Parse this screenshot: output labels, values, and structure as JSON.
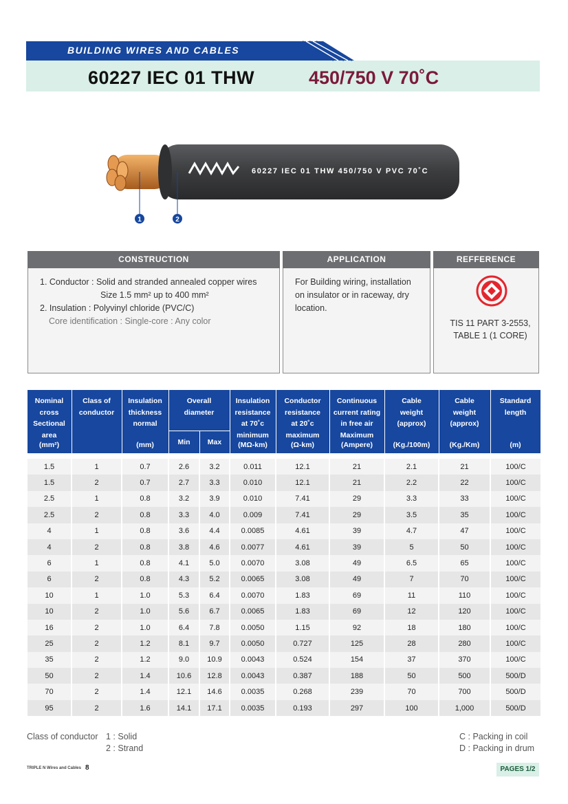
{
  "header": {
    "section_label": "BUILDING WIRES AND CABLES",
    "model": "60227 IEC 01 THW",
    "rating": "450/750 V 70˚C"
  },
  "cable": {
    "marking": "60227 IEC 01 THW 450/750 V PVC 70˚C",
    "callouts": [
      "1",
      "2"
    ]
  },
  "construction": {
    "title": "CONSTRUCTION",
    "lines": [
      "1. Conductor : Solid and stranded annealed copper wires",
      "Size 1.5 mm² up to 400 mm²",
      "2. Insulation : Polyvinyl chloride (PVC/C)",
      "Core identification : Single-core : Any color"
    ]
  },
  "application": {
    "title": "APPLICATION",
    "lines": [
      "For Building wiring, installation",
      "on insulator or in raceway, dry",
      "location."
    ]
  },
  "reference": {
    "title": "REFFERENCE",
    "lines": [
      "TIS 11 PART 3-2553,",
      "TABLE 1 (1 CORE)"
    ]
  },
  "table": {
    "headers": [
      {
        "lines": [
          "Nominal",
          "cross",
          "Sectional",
          "area"
        ],
        "unit": "(mm²)"
      },
      {
        "lines": [
          "Class of",
          "conductor"
        ]
      },
      {
        "lines": [
          "Insulation",
          "thickness",
          "normal"
        ],
        "unit": "(mm)"
      },
      {
        "lines": [
          "Overall",
          "diameter"
        ],
        "sub": [
          "Min",
          "Max"
        ]
      },
      {
        "lines": [
          "Insulation",
          "resistance",
          "at 70˚c",
          "minimum"
        ],
        "unit": "(MΩ-km)"
      },
      {
        "lines": [
          "Conductor",
          "resistance",
          "at 20˚c",
          "maximum"
        ],
        "unit": "(Ω-km)"
      },
      {
        "lines": [
          "Continuous",
          "current rating",
          "in free air",
          "Maximum"
        ],
        "unit": "(Ampere)"
      },
      {
        "lines": [
          "Cable",
          "weight",
          "(approx)"
        ],
        "unit": "(Kg./100m)"
      },
      {
        "lines": [
          "Cable",
          "weight",
          "(approx)"
        ],
        "unit": "(Kg./Km)"
      },
      {
        "lines": [
          "Standard",
          "length"
        ],
        "unit": "(m)"
      }
    ],
    "rows": [
      [
        "1.5",
        "1",
        "0.7",
        "2.6",
        "3.2",
        "0.011",
        "12.1",
        "21",
        "2.1",
        "21",
        "100/C"
      ],
      [
        "1.5",
        "2",
        "0.7",
        "2.7",
        "3.3",
        "0.010",
        "12.1",
        "21",
        "2.2",
        "22",
        "100/C"
      ],
      [
        "2.5",
        "1",
        "0.8",
        "3.2",
        "3.9",
        "0.010",
        "7.41",
        "29",
        "3.3",
        "33",
        "100/C"
      ],
      [
        "2.5",
        "2",
        "0.8",
        "3.3",
        "4.0",
        "0.009",
        "7.41",
        "29",
        "3.5",
        "35",
        "100/C"
      ],
      [
        "4",
        "1",
        "0.8",
        "3.6",
        "4.4",
        "0.0085",
        "4.61",
        "39",
        "4.7",
        "47",
        "100/C"
      ],
      [
        "4",
        "2",
        "0.8",
        "3.8",
        "4.6",
        "0.0077",
        "4.61",
        "39",
        "5",
        "50",
        "100/C"
      ],
      [
        "6",
        "1",
        "0.8",
        "4.1",
        "5.0",
        "0.0070",
        "3.08",
        "49",
        "6.5",
        "65",
        "100/C"
      ],
      [
        "6",
        "2",
        "0.8",
        "4.3",
        "5.2",
        "0.0065",
        "3.08",
        "49",
        "7",
        "70",
        "100/C"
      ],
      [
        "10",
        "1",
        "1.0",
        "5.3",
        "6.4",
        "0.0070",
        "1.83",
        "69",
        "11",
        "110",
        "100/C"
      ],
      [
        "10",
        "2",
        "1.0",
        "5.6",
        "6.7",
        "0.0065",
        "1.83",
        "69",
        "12",
        "120",
        "100/C"
      ],
      [
        "16",
        "2",
        "1.0",
        "6.4",
        "7.8",
        "0.0050",
        "1.15",
        "92",
        "18",
        "180",
        "100/C"
      ],
      [
        "25",
        "2",
        "1.2",
        "8.1",
        "9.7",
        "0.0050",
        "0.727",
        "125",
        "28",
        "280",
        "100/C"
      ],
      [
        "35",
        "2",
        "1.2",
        "9.0",
        "10.9",
        "0.0043",
        "0.524",
        "154",
        "37",
        "370",
        "100/C"
      ],
      [
        "50",
        "2",
        "1.4",
        "10.6",
        "12.8",
        "0.0043",
        "0.387",
        "188",
        "50",
        "500",
        "500/D"
      ],
      [
        "70",
        "2",
        "1.4",
        "12.1",
        "14.6",
        "0.0035",
        "0.268",
        "239",
        "70",
        "700",
        "500/D"
      ],
      [
        "95",
        "2",
        "1.6",
        "14.1",
        "17.1",
        "0.0035",
        "0.193",
        "297",
        "100",
        "1,000",
        "500/D"
      ]
    ]
  },
  "notes": {
    "class_label": "Class of conductor",
    "class_items": [
      "1 : Solid",
      "2 : Strand"
    ],
    "packing": [
      "C : Packing in coil",
      "D : Packing in drum"
    ]
  },
  "footer": {
    "brand": "TRIPLE N Wires and Cables",
    "page_number": "8",
    "pages": "PAGES 1/2"
  }
}
